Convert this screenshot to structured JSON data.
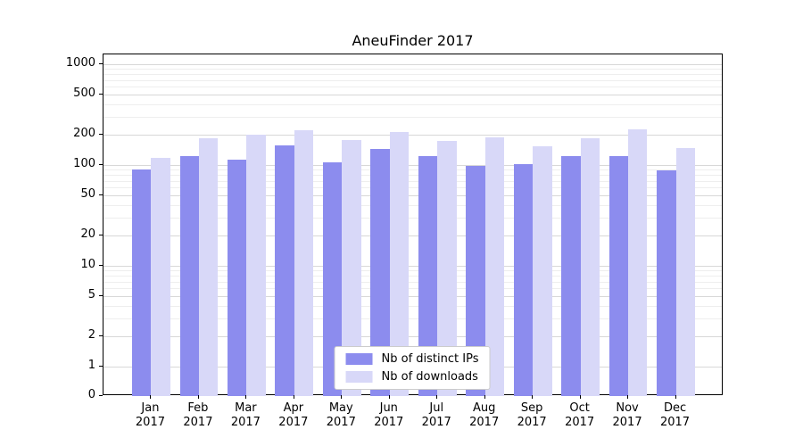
{
  "chart_data": {
    "type": "bar",
    "title": "AneuFinder 2017",
    "xlabel": "",
    "ylabel": "",
    "yscale": "log",
    "grid": true,
    "legend_position": "lower center",
    "ylim": [
      0,
      1250
    ],
    "yticks": [
      0,
      1,
      2,
      5,
      10,
      20,
      50,
      100,
      200,
      500,
      1000
    ],
    "categories": [
      "Jan 2017",
      "Feb 2017",
      "Mar 2017",
      "Apr 2017",
      "May 2017",
      "Jun 2017",
      "Jul 2017",
      "Aug 2017",
      "Sep 2017",
      "Oct 2017",
      "Nov 2017",
      "Dec 2017"
    ],
    "series": [
      {
        "name": "Nb of distinct IPs",
        "color": "#8c8cee",
        "values": [
          90,
          122,
          112,
          158,
          107,
          143,
          122,
          97,
          103,
          122,
          122,
          88
        ]
      },
      {
        "name": "Nb of downloads",
        "color": "#d8d8f8",
        "values": [
          117,
          183,
          200,
          220,
          178,
          212,
          172,
          190,
          152,
          183,
          225,
          147
        ]
      }
    ]
  }
}
